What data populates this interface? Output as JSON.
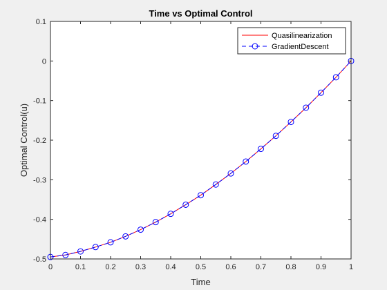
{
  "chart_data": {
    "type": "line",
    "title": "Time vs Optimal Control",
    "xlabel": "Time",
    "ylabel": "Optimal Control(u)",
    "xlim": [
      0,
      1
    ],
    "ylim": [
      -0.5,
      0.1
    ],
    "xticks": [
      0,
      0.1,
      0.2,
      0.3,
      0.4,
      0.5,
      0.6,
      0.7,
      0.8,
      0.9,
      1
    ],
    "xtick_labels": [
      "0",
      "0.1",
      "0.2",
      "0.3",
      "0.4",
      "0.5",
      "0.6",
      "0.7",
      "0.8",
      "0.9",
      "1"
    ],
    "yticks": [
      -0.5,
      -0.4,
      -0.3,
      -0.2,
      -0.1,
      0,
      0.1
    ],
    "ytick_labels": [
      "-0.5",
      "-0.4",
      "-0.3",
      "-0.2",
      "-0.1",
      "0",
      "0.1"
    ],
    "grid": false,
    "legend_position": "top-right",
    "x": [
      0,
      0.05,
      0.1,
      0.15,
      0.2,
      0.25,
      0.3,
      0.35,
      0.4,
      0.45,
      0.5,
      0.55,
      0.6,
      0.65,
      0.7,
      0.75,
      0.8,
      0.85,
      0.9,
      0.95,
      1
    ],
    "series": [
      {
        "name": "Quasilinearization",
        "style": "solid",
        "marker": "none",
        "color": "#ff0000",
        "values": [
          -0.495,
          -0.49,
          -0.481,
          -0.47,
          -0.458,
          -0.443,
          -0.426,
          -0.407,
          -0.386,
          -0.363,
          -0.339,
          -0.312,
          -0.284,
          -0.254,
          -0.222,
          -0.189,
          -0.154,
          -0.118,
          -0.08,
          -0.041,
          0.0
        ]
      },
      {
        "name": "GradientDescent",
        "style": "dashed",
        "marker": "circle",
        "color": "#0000ff",
        "values": [
          -0.495,
          -0.49,
          -0.481,
          -0.47,
          -0.458,
          -0.443,
          -0.426,
          -0.407,
          -0.386,
          -0.363,
          -0.339,
          -0.312,
          -0.284,
          -0.254,
          -0.222,
          -0.189,
          -0.154,
          -0.118,
          -0.08,
          -0.041,
          0.0
        ]
      }
    ]
  }
}
